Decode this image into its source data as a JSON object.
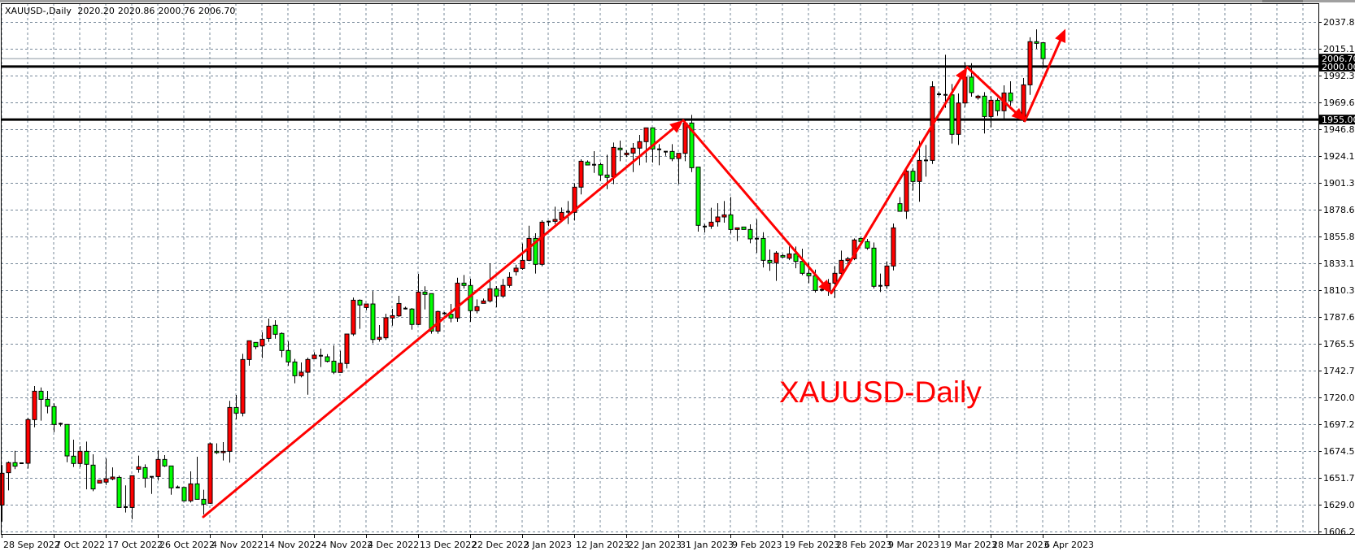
{
  "header": {
    "symbol": "XAUUSD-,Daily",
    "open": "2020.20",
    "high": "2020.86",
    "low": "2000.76",
    "close": "2006.70"
  },
  "watermark": "XAUUSD-Daily",
  "colors": {
    "bull": "#ff0000",
    "bear": "#00ff00",
    "grid": "#778899",
    "arrow": "#ff0000",
    "level": "#000000",
    "bid_line": "#8a96a0"
  },
  "chart_data": {
    "type": "candlestick",
    "title": "XAUUSD-,Daily",
    "ylim": [
      1606.25,
      2037.85
    ],
    "grid": true,
    "y_ticks": [
      "2037.85",
      "2015.10",
      "1992.35",
      "1969.60",
      "1946.85",
      "1924.10",
      "1901.35",
      "1878.60",
      "1855.85",
      "1833.10",
      "1810.35",
      "1787.60",
      "1765.50",
      "1742.75",
      "1720.00",
      "1697.25",
      "1674.50",
      "1651.75",
      "1629.00",
      "1606.25"
    ],
    "x_ticks": [
      "28 Sep 2022",
      "7 Oct 2022",
      "17 Oct 2022",
      "26 Oct 2022",
      "4 Nov 2022",
      "14 Nov 2022",
      "24 Nov 2022",
      "4 Dec 2022",
      "13 Dec 2022",
      "22 Dec 2022",
      "3 Jan 2023",
      "12 Jan 2023",
      "22 Jan 2023",
      "31 Jan 2023",
      "9 Feb 2023",
      "19 Feb 2023",
      "28 Feb 2023",
      "9 Mar 2023",
      "19 Mar 2023",
      "28 Mar 2023",
      "6 Apr 2023"
    ],
    "candle_fields": [
      "open",
      "high",
      "low",
      "close"
    ],
    "candles": [
      [
        1628,
        1662,
        1614,
        1655
      ],
      [
        1655.5,
        1665,
        1640.5,
        1664
      ],
      [
        1664,
        1674,
        1658.5,
        1661
      ],
      [
        1663.5,
        1664,
        1663,
        1663.5
      ],
      [
        1663.5,
        1702,
        1659,
        1700.5
      ],
      [
        1700.5,
        1729,
        1694,
        1724.6
      ],
      [
        1724.6,
        1727.8,
        1699.6,
        1717.7
      ],
      [
        1717.7,
        1724.9,
        1705.8,
        1711.8
      ],
      [
        1711.5,
        1714.3,
        1689.9,
        1696.4
      ],
      [
        1697,
        1698,
        1694.8,
        1697
      ],
      [
        1696.4,
        1696.4,
        1664.4,
        1669.7
      ],
      [
        1669.5,
        1683.5,
        1660.3,
        1663.3
      ],
      [
        1663.3,
        1678,
        1660.3,
        1673.6
      ],
      [
        1673.6,
        1681.9,
        1641.4,
        1662.6
      ],
      [
        1661.9,
        1671.1,
        1639.8,
        1641.7
      ],
      [
        1646.7,
        1649,
        1646.7,
        1649
      ],
      [
        1647.5,
        1667.6,
        1645.1,
        1650.2
      ],
      [
        1650.2,
        1660,
        1649,
        1651.8
      ],
      [
        1651.5,
        1653,
        1626,
        1626
      ],
      [
        1626.3,
        1644.7,
        1621.7,
        1626.3
      ],
      [
        1626,
        1652.9,
        1616,
        1652.9
      ],
      [
        1658.4,
        1670,
        1655.5,
        1660.5
      ],
      [
        1659.8,
        1662.6,
        1642.8,
        1650.9
      ],
      [
        1652,
        1652,
        1637.5,
        1652
      ],
      [
        1652.2,
        1674.3,
        1648.8,
        1666.7
      ],
      [
        1666.7,
        1670.4,
        1660.3,
        1661.2
      ],
      [
        1661.2,
        1661.2,
        1636.8,
        1642.6
      ],
      [
        1643,
        1644.6,
        1642.4,
        1643
      ],
      [
        1643,
        1643,
        1631.1,
        1631.6
      ],
      [
        1631.6,
        1656.6,
        1630.2,
        1646
      ],
      [
        1646,
        1669,
        1632.9,
        1632.9
      ],
      [
        1632.9,
        1641,
        1620,
        1628.8
      ],
      [
        1629.5,
        1681,
        1629,
        1680
      ],
      [
        1673.6,
        1680.4,
        1671.3,
        1672.5
      ],
      [
        1672.5,
        1681.4,
        1665.8,
        1673.6
      ],
      [
        1673.6,
        1716.4,
        1664,
        1710.8
      ],
      [
        1710.8,
        1721.4,
        1700.7,
        1706
      ],
      [
        1706,
        1756.3,
        1703.2,
        1751.5
      ],
      [
        1751.5,
        1767.4,
        1746.2,
        1767.4
      ],
      [
        1766,
        1766,
        1760.3,
        1762.3
      ],
      [
        1763,
        1774.5,
        1752.7,
        1768.7
      ],
      [
        1769.4,
        1786.2,
        1766.5,
        1779.8
      ],
      [
        1780.5,
        1784.8,
        1769.2,
        1772.9
      ],
      [
        1773.6,
        1774.5,
        1753.4,
        1759.1
      ],
      [
        1759.1,
        1766.9,
        1746.2,
        1749.4
      ],
      [
        1749.4,
        1752,
        1731.3,
        1737.7
      ],
      [
        1737.7,
        1749,
        1736.3,
        1740.7
      ],
      [
        1740.7,
        1753.1,
        1721.6,
        1751.5
      ],
      [
        1752.2,
        1757.7,
        1752.2,
        1755.2
      ],
      [
        1754.7,
        1760.7,
        1745.1,
        1754.7
      ],
      [
        1753.8,
        1756.1,
        1749,
        1749.9
      ],
      [
        1750.1,
        1763.5,
        1739.1,
        1740.7
      ],
      [
        1740.5,
        1758.9,
        1740.5,
        1748.3
      ],
      [
        1748.1,
        1773.1,
        1743.9,
        1773.1
      ],
      [
        1773.1,
        1804.1,
        1771.5,
        1801.8
      ],
      [
        1801.8,
        1802.5,
        1777.5,
        1797.7
      ],
      [
        1795.6,
        1798.6,
        1793.3,
        1798.6
      ],
      [
        1798.6,
        1809.6,
        1765.3,
        1768.5
      ],
      [
        1768.7,
        1780.7,
        1766.7,
        1770.3
      ],
      [
        1769.9,
        1790.3,
        1768,
        1786.9
      ],
      [
        1786.7,
        1794.5,
        1780.2,
        1788.7
      ],
      [
        1788.5,
        1805.5,
        1787.6,
        1799
      ],
      [
        1794.7,
        1796.3,
        1794,
        1794.7
      ],
      [
        1794.3,
        1795.2,
        1776.8,
        1781.2
      ],
      [
        1781.2,
        1824.1,
        1780.7,
        1808.7
      ],
      [
        1808.7,
        1813.6,
        1794,
        1806.7
      ],
      [
        1807.4,
        1807.4,
        1773.4,
        1775.6
      ],
      [
        1775.6,
        1792.9,
        1773.4,
        1792.2
      ],
      [
        1790.6,
        1791.7,
        1789.4,
        1790.6
      ],
      [
        1789.9,
        1798.6,
        1783,
        1786.7
      ],
      [
        1786.7,
        1820.9,
        1783.5,
        1816.3
      ],
      [
        1816.3,
        1823.2,
        1811.7,
        1814.3
      ],
      [
        1814.3,
        1820,
        1783.5,
        1792.9
      ],
      [
        1792.9,
        1802.5,
        1790.6,
        1796.3
      ],
      [
        1799.1,
        1803.2,
        1799.1,
        1801.2
      ],
      [
        1801.2,
        1833.1,
        1799.8,
        1811.5
      ],
      [
        1811.5,
        1813.8,
        1795.9,
        1805.3
      ],
      [
        1805.3,
        1819.8,
        1803.7,
        1814.3
      ],
      [
        1814.3,
        1825.5,
        1812.4,
        1821.2
      ],
      [
        1826,
        1831.9,
        1822.8,
        1829
      ],
      [
        1828.7,
        1849.9,
        1827.6,
        1835.6
      ],
      [
        1835.6,
        1865,
        1834.9,
        1854.2
      ],
      [
        1854.2,
        1858.6,
        1824.4,
        1832.2
      ],
      [
        1832.2,
        1869.6,
        1830.6,
        1868
      ],
      [
        1868.5,
        1869.4,
        1864.6,
        1868.5
      ],
      [
        1868.7,
        1881.1,
        1866.4,
        1870.3
      ],
      [
        1870.1,
        1880.4,
        1868,
        1876.3
      ],
      [
        1876.8,
        1885.9,
        1866.4,
        1876.8
      ],
      [
        1876.3,
        1901.1,
        1869.4,
        1897.7
      ],
      [
        1897.7,
        1921.3,
        1891.5,
        1919.7
      ],
      [
        1919,
        1920.4,
        1916.5,
        1916.5
      ],
      [
        1916.7,
        1928.2,
        1909.8,
        1916.7
      ],
      [
        1916.9,
        1918.6,
        1903,
        1908
      ],
      [
        1908,
        1925.2,
        1896,
        1906
      ],
      [
        1906.6,
        1935.6,
        1900.2,
        1931.4
      ],
      [
        1930.8,
        1937.2,
        1919.7,
        1929.4
      ],
      [
        1925.2,
        1928.9,
        1923.2,
        1926.6
      ],
      [
        1926.6,
        1935.1,
        1910.5,
        1930.8
      ],
      [
        1930.8,
        1942,
        1916.3,
        1936.3
      ],
      [
        1936.3,
        1948,
        1918.6,
        1948
      ],
      [
        1948,
        1948,
        1918.6,
        1930.1
      ],
      [
        1929.8,
        1934.2,
        1916.3,
        1929.8
      ],
      [
        1927.8,
        1928.2,
        1924.3,
        1927.8
      ],
      [
        1928,
        1934.2,
        1919.7,
        1921.8
      ],
      [
        1922,
        1926.4,
        1900.2,
        1926.4
      ],
      [
        1926.4,
        1955.8,
        1919.7,
        1951.9
      ],
      [
        1952.1,
        1959,
        1910.5,
        1914.2
      ],
      [
        1914.7,
        1914.7,
        1860,
        1865.3
      ],
      [
        1864.3,
        1866.4,
        1859.3,
        1864.3
      ],
      [
        1864.6,
        1880.2,
        1862.3,
        1868
      ],
      [
        1868.4,
        1884.1,
        1864.3,
        1872.4
      ],
      [
        1872.4,
        1885.9,
        1867.6,
        1874.2
      ],
      [
        1874.2,
        1889.4,
        1858.4,
        1861.8
      ],
      [
        1861.8,
        1863.2,
        1851.9,
        1863.2
      ],
      [
        1863.9,
        1863.9,
        1861.8,
        1861.8
      ],
      [
        1861.8,
        1866.2,
        1850.1,
        1853.8
      ],
      [
        1854,
        1870.3,
        1842,
        1854
      ],
      [
        1854.2,
        1859.5,
        1829.6,
        1835.6
      ],
      [
        1835.6,
        1844.8,
        1826.7,
        1833.6
      ],
      [
        1833.6,
        1843.4,
        1818.2,
        1841.8
      ],
      [
        1839.7,
        1840.9,
        1837.7,
        1838.4
      ],
      [
        1837.4,
        1847.3,
        1835.8,
        1841.1
      ],
      [
        1841.1,
        1847.3,
        1828.9,
        1834.7
      ],
      [
        1834.7,
        1845.5,
        1823,
        1824.6
      ],
      [
        1824.6,
        1833.6,
        1816.3,
        1822.5
      ],
      [
        1822.5,
        1827.8,
        1808.3,
        1810.1
      ],
      [
        1810.6,
        1811.7,
        1809.2,
        1810.6
      ],
      [
        1809.9,
        1819.8,
        1805.5,
        1816.3
      ],
      [
        1816.3,
        1830.8,
        1803.7,
        1824.6
      ],
      [
        1824.6,
        1843.9,
        1823,
        1835.6
      ],
      [
        1835.4,
        1838.6,
        1831.2,
        1837
      ],
      [
        1837,
        1854.2,
        1835.8,
        1852.9
      ],
      [
        1854.2,
        1854.7,
        1850.8,
        1851.5
      ],
      [
        1851.5,
        1853.8,
        1844.6,
        1846
      ],
      [
        1846,
        1850.8,
        1811.7,
        1813.6
      ],
      [
        1814,
        1824.4,
        1808.7,
        1814
      ],
      [
        1814,
        1834.7,
        1811.5,
        1830.8
      ],
      [
        1830.8,
        1866.9,
        1827.1,
        1863.2
      ],
      [
        1883.7,
        1889.2,
        1877.2,
        1877.2
      ],
      [
        1877.2,
        1914,
        1870.8,
        1911.2
      ],
      [
        1911.2,
        1914,
        1894.9,
        1902.5
      ],
      [
        1902.5,
        1936.9,
        1885.3,
        1920.4
      ],
      [
        1920.4,
        1933.5,
        1906.6,
        1920.4
      ],
      [
        1920.4,
        1987.5,
        1917.4,
        1982.9
      ],
      [
        1976.5,
        1978.3,
        1974.9,
        1976.5
      ],
      [
        1976,
        2010,
        1965,
        1976
      ],
      [
        1976,
        1985.2,
        1934.7,
        1942.5
      ],
      [
        1942.5,
        1977.2,
        1933.5,
        1969.1
      ],
      [
        1969.1,
        2003.6,
        1965.7,
        1991
      ],
      [
        1991,
        2002.9,
        1974.4,
        1977.9
      ],
      [
        1973.5,
        1976,
        1971.9,
        1974.9
      ],
      [
        1974.9,
        1978.3,
        1943.2,
        1957.6
      ],
      [
        1957.6,
        1974.9,
        1948.5,
        1971.4
      ],
      [
        1971.4,
        1973.3,
        1958.1,
        1962.5
      ],
      [
        1962.5,
        1984.1,
        1954.9,
        1977.6
      ],
      [
        1977.6,
        1987.5,
        1966.8,
        1970.8
      ],
      null,
      [
        1955.3,
        1990.3,
        1953.1,
        1984.5
      ],
      [
        1984.5,
        2024.8,
        1976,
        2021.1
      ],
      [
        2021.1,
        2031.6,
        2015.1,
        2019.7
      ],
      [
        2020.2,
        2020.86,
        2000.76,
        2006.7
      ]
    ],
    "levels": [
      {
        "price": 2000.0,
        "label": "2000.00"
      },
      {
        "price": 1955.0,
        "label": "1955.00"
      }
    ],
    "bid": {
      "price": 2006.7,
      "label": "2006.70"
    },
    "arrows": [
      {
        "from": [
          31,
          1618
        ],
        "to": [
          104.75,
          1954.4
        ]
      },
      {
        "from": [
          104.75,
          1954.4
        ],
        "to": [
          127.5,
          1807.8
        ]
      },
      {
        "from": [
          127.5,
          1807.8
        ],
        "to": [
          148.4,
          1999.4
        ]
      },
      {
        "from": [
          148.4,
          1999.4
        ],
        "to": [
          157.25,
          1953.8
        ]
      },
      {
        "from": [
          157.25,
          1953.8
        ],
        "to": [
          163.5,
          2032
        ]
      }
    ]
  }
}
